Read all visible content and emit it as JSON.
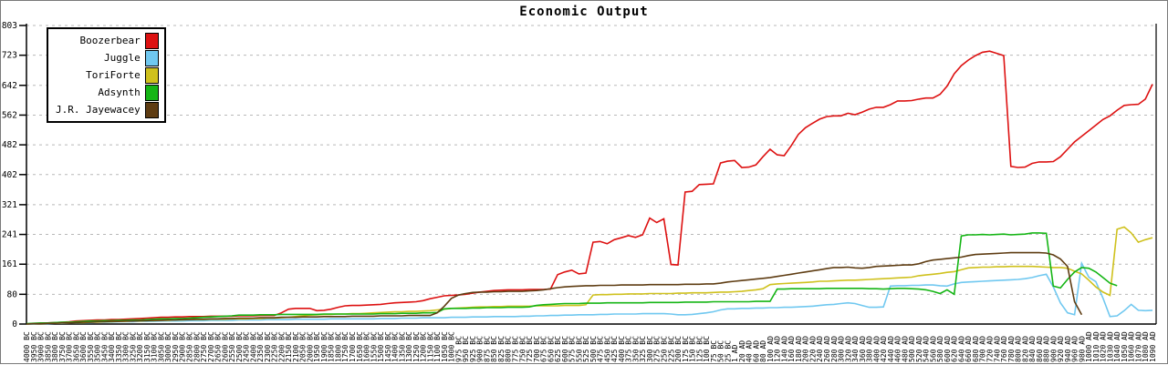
{
  "window": {
    "title": "Economic Output"
  },
  "chart_data": {
    "type": "line",
    "title": "Economic Output",
    "xlabel": "",
    "ylabel": "",
    "ylim": [
      0,
      803
    ],
    "y_ticks": [
      0,
      80,
      161,
      241,
      321,
      402,
      482,
      562,
      642,
      723,
      803
    ],
    "grid": "horizontal-dashed",
    "grid_color": "#b8b8b8",
    "axis_color": "#000000",
    "legend_position": "top-left",
    "x_labels": [
      "4000 BC",
      "3950 BC",
      "3900 BC",
      "3850 BC",
      "3800 BC",
      "3750 BC",
      "3700 BC",
      "3650 BC",
      "3600 BC",
      "3550 BC",
      "3500 BC",
      "3450 BC",
      "3400 BC",
      "3350 BC",
      "3300 BC",
      "3250 BC",
      "3200 BC",
      "3150 BC",
      "3100 BC",
      "3050 BC",
      "3000 BC",
      "2950 BC",
      "2900 BC",
      "2850 BC",
      "2800 BC",
      "2750 BC",
      "2700 BC",
      "2650 BC",
      "2600 BC",
      "2550 BC",
      "2500 BC",
      "2450 BC",
      "2400 BC",
      "2350 BC",
      "2300 BC",
      "2250 BC",
      "2200 BC",
      "2150 BC",
      "2100 BC",
      "2050 BC",
      "2000 BC",
      "1950 BC",
      "1900 BC",
      "1850 BC",
      "1800 BC",
      "1750 BC",
      "1700 BC",
      "1650 BC",
      "1600 BC",
      "1550 BC",
      "1500 BC",
      "1450 BC",
      "1400 BC",
      "1350 BC",
      "1300 BC",
      "1250 BC",
      "1200 BC",
      "1150 BC",
      "1100 BC",
      "1050 BC",
      "1000 BC",
      "975 BC",
      "950 BC",
      "925 BC",
      "900 BC",
      "875 BC",
      "850 BC",
      "825 BC",
      "800 BC",
      "775 BC",
      "750 BC",
      "725 BC",
      "700 BC",
      "675 BC",
      "650 BC",
      "625 BC",
      "600 BC",
      "575 BC",
      "550 BC",
      "525 BC",
      "500 BC",
      "475 BC",
      "450 BC",
      "425 BC",
      "400 BC",
      "375 BC",
      "350 BC",
      "325 BC",
      "300 BC",
      "275 BC",
      "250 BC",
      "225 BC",
      "200 BC",
      "175 BC",
      "150 BC",
      "125 BC",
      "100 BC",
      "75 BC",
      "50 BC",
      "25 BC",
      "1 AD",
      "20 AD",
      "40 AD",
      "60 AD",
      "80 AD",
      "100 AD",
      "120 AD",
      "140 AD",
      "160 AD",
      "180 AD",
      "200 AD",
      "220 AD",
      "240 AD",
      "260 AD",
      "280 AD",
      "300 AD",
      "320 AD",
      "340 AD",
      "360 AD",
      "380 AD",
      "400 AD",
      "420 AD",
      "440 AD",
      "460 AD",
      "480 AD",
      "500 AD",
      "520 AD",
      "540 AD",
      "560 AD",
      "580 AD",
      "600 AD",
      "620 AD",
      "640 AD",
      "660 AD",
      "680 AD",
      "700 AD",
      "720 AD",
      "740 AD",
      "760 AD",
      "780 AD",
      "800 AD",
      "820 AD",
      "840 AD",
      "860 AD",
      "880 AD",
      "900 AD",
      "920 AD",
      "940 AD",
      "960 AD",
      "980 AD",
      "1000 AD",
      "1010 AD",
      "1020 AD",
      "1030 AD",
      "1040 AD",
      "1050 AD",
      "1060 AD",
      "1070 AD",
      "1080 AD",
      "1090 AD"
    ],
    "series": [
      {
        "name": "Boozerbear",
        "color": "#dd1111",
        "values": [
          0,
          1,
          2,
          3,
          4,
          5,
          6,
          8,
          9,
          10,
          11,
          11,
          12,
          12,
          13,
          14,
          15,
          16,
          17,
          18,
          18,
          19,
          19,
          20,
          20,
          20,
          21,
          21,
          21,
          21,
          22,
          22,
          22,
          23,
          23,
          23,
          30,
          40,
          42,
          42,
          42,
          36,
          37,
          40,
          45,
          49,
          50,
          50,
          51,
          52,
          53,
          55,
          57,
          58,
          59,
          60,
          63,
          68,
          72,
          76,
          77,
          78,
          80,
          83,
          86,
          88,
          90,
          91,
          92,
          92,
          92,
          93,
          93,
          93,
          94,
          133,
          140,
          145,
          135,
          137,
          220,
          222,
          216,
          227,
          232,
          238,
          233,
          240,
          285,
          273,
          283,
          160,
          159,
          355,
          357,
          375,
          376,
          377,
          433,
          438,
          440,
          421,
          422,
          428,
          450,
          470,
          455,
          453,
          480,
          510,
          528,
          540,
          551,
          558,
          560,
          560,
          567,
          563,
          570,
          578,
          583,
          583,
          590,
          600,
          600,
          601,
          605,
          608,
          608,
          618,
          640,
          673,
          695,
          710,
          722,
          731,
          734,
          728,
          722,
          424,
          421,
          422,
          432,
          436,
          436,
          437,
          450,
          470,
          490,
          505,
          520,
          535,
          550,
          560,
          575,
          588,
          590,
          591,
          605,
          645
        ]
      },
      {
        "name": "Juggle",
        "color": "#70c8f0",
        "values": [
          0,
          0,
          1,
          1,
          2,
          2,
          3,
          3,
          4,
          4,
          5,
          5,
          5,
          6,
          6,
          6,
          7,
          7,
          7,
          8,
          8,
          8,
          8,
          9,
          9,
          9,
          10,
          10,
          10,
          10,
          11,
          11,
          11,
          11,
          12,
          12,
          12,
          12,
          13,
          13,
          13,
          13,
          13,
          14,
          14,
          14,
          14,
          14,
          14,
          14,
          15,
          15,
          15,
          16,
          16,
          16,
          17,
          17,
          17,
          17,
          18,
          18,
          18,
          19,
          19,
          19,
          20,
          20,
          20,
          20,
          21,
          21,
          22,
          22,
          23,
          23,
          24,
          24,
          25,
          25,
          25,
          26,
          26,
          27,
          27,
          27,
          27,
          28,
          28,
          28,
          28,
          27,
          25,
          25,
          26,
          28,
          30,
          33,
          38,
          41,
          41,
          42,
          42,
          43,
          43,
          44,
          44,
          45,
          45,
          46,
          47,
          48,
          50,
          52,
          53,
          55,
          57,
          55,
          50,
          45,
          45,
          46,
          102,
          103,
          103,
          104,
          104,
          105,
          105,
          103,
          102,
          108,
          112,
          113,
          114,
          115,
          116,
          117,
          118,
          119,
          120,
          122,
          125,
          130,
          134,
          100,
          57,
          30,
          25,
          163,
          126,
          114,
          70,
          20,
          22,
          36,
          53,
          37,
          36,
          37
        ]
      },
      {
        "name": "ToriForte",
        "color": "#cfc11d",
        "values": [
          0,
          1,
          1,
          2,
          2,
          3,
          3,
          4,
          4,
          5,
          5,
          6,
          6,
          7,
          7,
          8,
          8,
          9,
          9,
          10,
          10,
          11,
          11,
          12,
          12,
          12,
          13,
          13,
          13,
          14,
          14,
          14,
          15,
          15,
          16,
          16,
          17,
          18,
          20,
          22,
          24,
          25,
          26,
          26,
          27,
          27,
          28,
          28,
          29,
          30,
          31,
          32,
          33,
          33,
          34,
          34,
          35,
          36,
          38,
          40,
          42,
          43,
          44,
          45,
          46,
          46,
          47,
          47,
          48,
          48,
          48,
          48,
          49,
          49,
          49,
          49,
          50,
          50,
          50,
          52,
          78,
          79,
          79,
          80,
          80,
          81,
          81,
          81,
          82,
          82,
          82,
          82,
          83,
          83,
          84,
          84,
          84,
          85,
          86,
          86,
          87,
          88,
          90,
          92,
          95,
          106,
          108,
          109,
          110,
          111,
          112,
          113,
          115,
          115,
          116,
          117,
          118,
          118,
          119,
          120,
          121,
          122,
          123,
          124,
          125,
          126,
          130,
          132,
          134,
          136,
          139,
          141,
          146,
          151,
          152,
          153,
          153,
          154,
          154,
          155,
          155,
          155,
          155,
          154,
          153,
          152,
          152,
          150,
          142,
          135,
          118,
          100,
          86,
          77,
          255,
          261,
          245,
          220,
          227,
          232
        ]
      },
      {
        "name": "Adsynth",
        "color": "#14b514",
        "values": [
          1,
          2,
          3,
          3,
          4,
          5,
          5,
          6,
          7,
          8,
          8,
          9,
          9,
          10,
          10,
          11,
          11,
          12,
          13,
          14,
          14,
          15,
          15,
          16,
          17,
          18,
          19,
          20,
          21,
          22,
          24,
          24,
          24,
          25,
          25,
          25,
          26,
          26,
          26,
          26,
          26,
          26,
          27,
          27,
          27,
          27,
          27,
          27,
          27,
          27,
          28,
          28,
          28,
          29,
          29,
          29,
          30,
          30,
          31,
          41,
          42,
          42,
          42,
          43,
          43,
          44,
          44,
          44,
          45,
          45,
          45,
          46,
          50,
          52,
          53,
          54,
          55,
          55,
          55,
          56,
          56,
          56,
          57,
          57,
          57,
          57,
          57,
          57,
          58,
          58,
          58,
          58,
          58,
          59,
          59,
          59,
          59,
          60,
          60,
          60,
          60,
          60,
          60,
          61,
          61,
          61,
          94,
          94,
          95,
          95,
          95,
          95,
          95,
          96,
          96,
          96,
          96,
          96,
          96,
          95,
          95,
          94,
          95,
          96,
          96,
          95,
          94,
          92,
          88,
          82,
          92,
          80,
          237,
          240,
          240,
          241,
          240,
          241,
          242,
          240,
          241,
          242,
          245,
          245,
          244,
          102,
          97,
          120,
          140,
          152,
          150,
          140,
          125,
          110,
          103,
          null,
          null,
          null,
          null,
          null
        ]
      },
      {
        "name": "J.R. Jayewacey",
        "color": "#5e3c12",
        "values": [
          0,
          1,
          1,
          2,
          2,
          3,
          3,
          4,
          5,
          5,
          6,
          6,
          7,
          7,
          8,
          8,
          9,
          9,
          10,
          10,
          11,
          11,
          12,
          12,
          13,
          13,
          14,
          14,
          15,
          15,
          16,
          16,
          16,
          17,
          17,
          17,
          18,
          18,
          18,
          19,
          19,
          19,
          20,
          20,
          20,
          20,
          21,
          21,
          21,
          21,
          22,
          22,
          22,
          22,
          23,
          23,
          23,
          23,
          30,
          48,
          69,
          78,
          82,
          85,
          86,
          86,
          87,
          87,
          88,
          88,
          88,
          89,
          90,
          92,
          95,
          98,
          100,
          101,
          102,
          103,
          103,
          104,
          104,
          104,
          105,
          105,
          105,
          105,
          106,
          106,
          106,
          106,
          106,
          107,
          107,
          107,
          108,
          108,
          110,
          113,
          115,
          117,
          119,
          121,
          123,
          125,
          128,
          131,
          134,
          137,
          140,
          143,
          146,
          149,
          152,
          152,
          153,
          151,
          150,
          152,
          155,
          156,
          157,
          158,
          159,
          159,
          162,
          168,
          172,
          174,
          176,
          178,
          180,
          184,
          187,
          188,
          189,
          190,
          191,
          192,
          192,
          192,
          192,
          192,
          191,
          186,
          175,
          155,
          60,
          25,
          null,
          null,
          null,
          null,
          null,
          null,
          null,
          null,
          null,
          null
        ]
      }
    ]
  }
}
